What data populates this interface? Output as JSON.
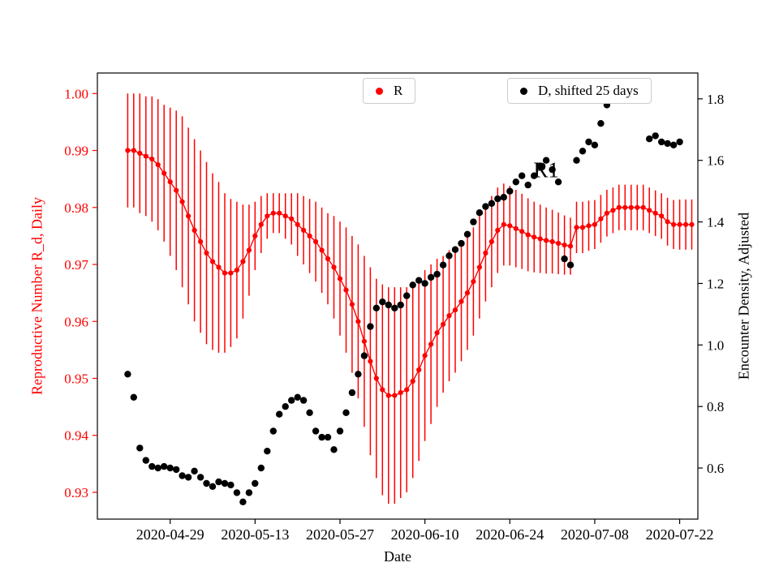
{
  "figure": {
    "background": "#ffffff",
    "colors": {
      "r_series": "#ff0000",
      "d_series": "#000000",
      "d_series_faded": "#b3b3b3",
      "axis": "#000000",
      "legend_border": "#cccccc"
    },
    "legends": [
      {
        "label": "R",
        "marker_color": "#ff0000"
      },
      {
        "label": "D, shifted 25 days",
        "marker_color": "#000000"
      }
    ],
    "annotation": {
      "text": "R1",
      "date": "2020-06-30",
      "value": 0.9865
    }
  },
  "chart_data": {
    "type": "scatter",
    "title": "",
    "xlabel": "Date",
    "ylabel_left": "Reproductive Number R_d, Daily",
    "ylabel_right": "Encounter Density, Adjusted",
    "x_tick_labels": [
      "2020-04-29",
      "2020-05-13",
      "2020-05-27",
      "2020-06-10",
      "2020-06-24",
      "2020-07-08",
      "2020-07-22"
    ],
    "left_tick_labels": [
      "0.93",
      "0.94",
      "0.95",
      "0.96",
      "0.97",
      "0.98",
      "0.99",
      "1.00"
    ],
    "right_tick_labels": [
      "0.6",
      "0.8",
      "1.0",
      "1.2",
      "1.4",
      "1.6",
      "1.8"
    ],
    "xlim": [
      "2020-04-17",
      "2020-07-25"
    ],
    "ylim_left": [
      0.9253,
      1.0036
    ],
    "ylim_right": [
      0.434,
      1.884
    ],
    "grid": false,
    "series": [
      {
        "name": "R",
        "axis": "left",
        "color": "#ff0000",
        "marker": "dot-with-errorbar",
        "start_date": "2020-04-22",
        "values": [
          0.99,
          0.99,
          0.9895,
          0.989,
          0.9885,
          0.9875,
          0.986,
          0.9845,
          0.983,
          0.981,
          0.9785,
          0.976,
          0.974,
          0.972,
          0.9705,
          0.9695,
          0.9685,
          0.9685,
          0.969,
          0.9705,
          0.9725,
          0.975,
          0.977,
          0.9785,
          0.979,
          0.979,
          0.9785,
          0.978,
          0.977,
          0.976,
          0.975,
          0.974,
          0.9725,
          0.971,
          0.9695,
          0.9675,
          0.9655,
          0.963,
          0.96,
          0.9565,
          0.953,
          0.95,
          0.948,
          0.947,
          0.947,
          0.9475,
          0.948,
          0.9495,
          0.9515,
          0.954,
          0.956,
          0.958,
          0.9595,
          0.961,
          0.962,
          0.9635,
          0.965,
          0.967,
          0.9695,
          0.972,
          0.974,
          0.976,
          0.977,
          0.9768,
          0.9763,
          0.9758,
          0.9752,
          0.9748,
          0.9745,
          0.9742,
          0.974,
          0.9737,
          0.9734,
          0.9732,
          0.9765,
          0.9765,
          0.9768,
          0.977,
          0.978,
          0.979,
          0.9795,
          0.98,
          0.98,
          0.98,
          0.98,
          0.98,
          0.9795,
          0.979,
          0.9785,
          0.9775,
          0.977,
          0.977,
          0.977,
          0.977
        ],
        "errors": [
          0.01,
          0.01,
          0.0105,
          0.0105,
          0.011,
          0.0115,
          0.012,
          0.013,
          0.014,
          0.015,
          0.0155,
          0.016,
          0.016,
          0.016,
          0.0155,
          0.015,
          0.014,
          0.013,
          0.012,
          0.01,
          0.008,
          0.006,
          0.005,
          0.004,
          0.0035,
          0.0035,
          0.004,
          0.0045,
          0.0055,
          0.006,
          0.0065,
          0.007,
          0.0075,
          0.008,
          0.009,
          0.01,
          0.011,
          0.012,
          0.0135,
          0.015,
          0.0165,
          0.0175,
          0.0185,
          0.019,
          0.019,
          0.0185,
          0.018,
          0.017,
          0.016,
          0.015,
          0.014,
          0.013,
          0.012,
          0.0115,
          0.011,
          0.0105,
          0.01,
          0.0095,
          0.009,
          0.0085,
          0.008,
          0.0075,
          0.0072,
          0.007,
          0.0068,
          0.0066,
          0.0064,
          0.0062,
          0.006,
          0.0058,
          0.0056,
          0.0054,
          0.0052,
          0.005,
          0.0045,
          0.0045,
          0.0044,
          0.0043,
          0.0042,
          0.0041,
          0.004,
          0.004,
          0.004,
          0.004,
          0.004,
          0.004,
          0.004,
          0.004,
          0.004,
          0.0042,
          0.0043,
          0.0044,
          0.0044,
          0.0044
        ]
      },
      {
        "name": "D, shifted 25 days",
        "axis": "right",
        "color": "#000000",
        "gray_color": "#b3b3b3",
        "gray_indices": [
          81,
          85
        ],
        "marker": "dot",
        "start_date": "2020-04-22",
        "values": [
          0.905,
          0.83,
          0.665,
          0.625,
          0.605,
          0.6,
          0.605,
          0.6,
          0.595,
          0.575,
          0.57,
          0.59,
          0.57,
          0.55,
          0.54,
          0.555,
          0.55,
          0.545,
          0.52,
          0.49,
          0.52,
          0.55,
          0.6,
          0.655,
          0.72,
          0.775,
          0.8,
          0.82,
          0.83,
          0.82,
          0.78,
          0.72,
          0.7,
          0.7,
          0.66,
          0.72,
          0.78,
          0.845,
          0.905,
          0.965,
          1.06,
          1.12,
          1.14,
          1.13,
          1.12,
          1.13,
          1.16,
          1.195,
          1.21,
          1.2,
          1.22,
          1.23,
          1.26,
          1.29,
          1.31,
          1.33,
          1.36,
          1.4,
          1.43,
          1.45,
          1.46,
          1.475,
          1.48,
          1.5,
          1.53,
          1.55,
          1.52,
          1.55,
          1.58,
          1.6,
          1.57,
          1.53,
          1.28,
          1.26,
          1.6,
          1.63,
          1.66,
          1.65,
          1.72,
          1.78,
          null,
          1.82,
          null,
          null,
          null,
          1.81,
          1.67,
          1.68,
          1.66,
          1.655,
          1.65,
          1.66
        ]
      }
    ]
  }
}
